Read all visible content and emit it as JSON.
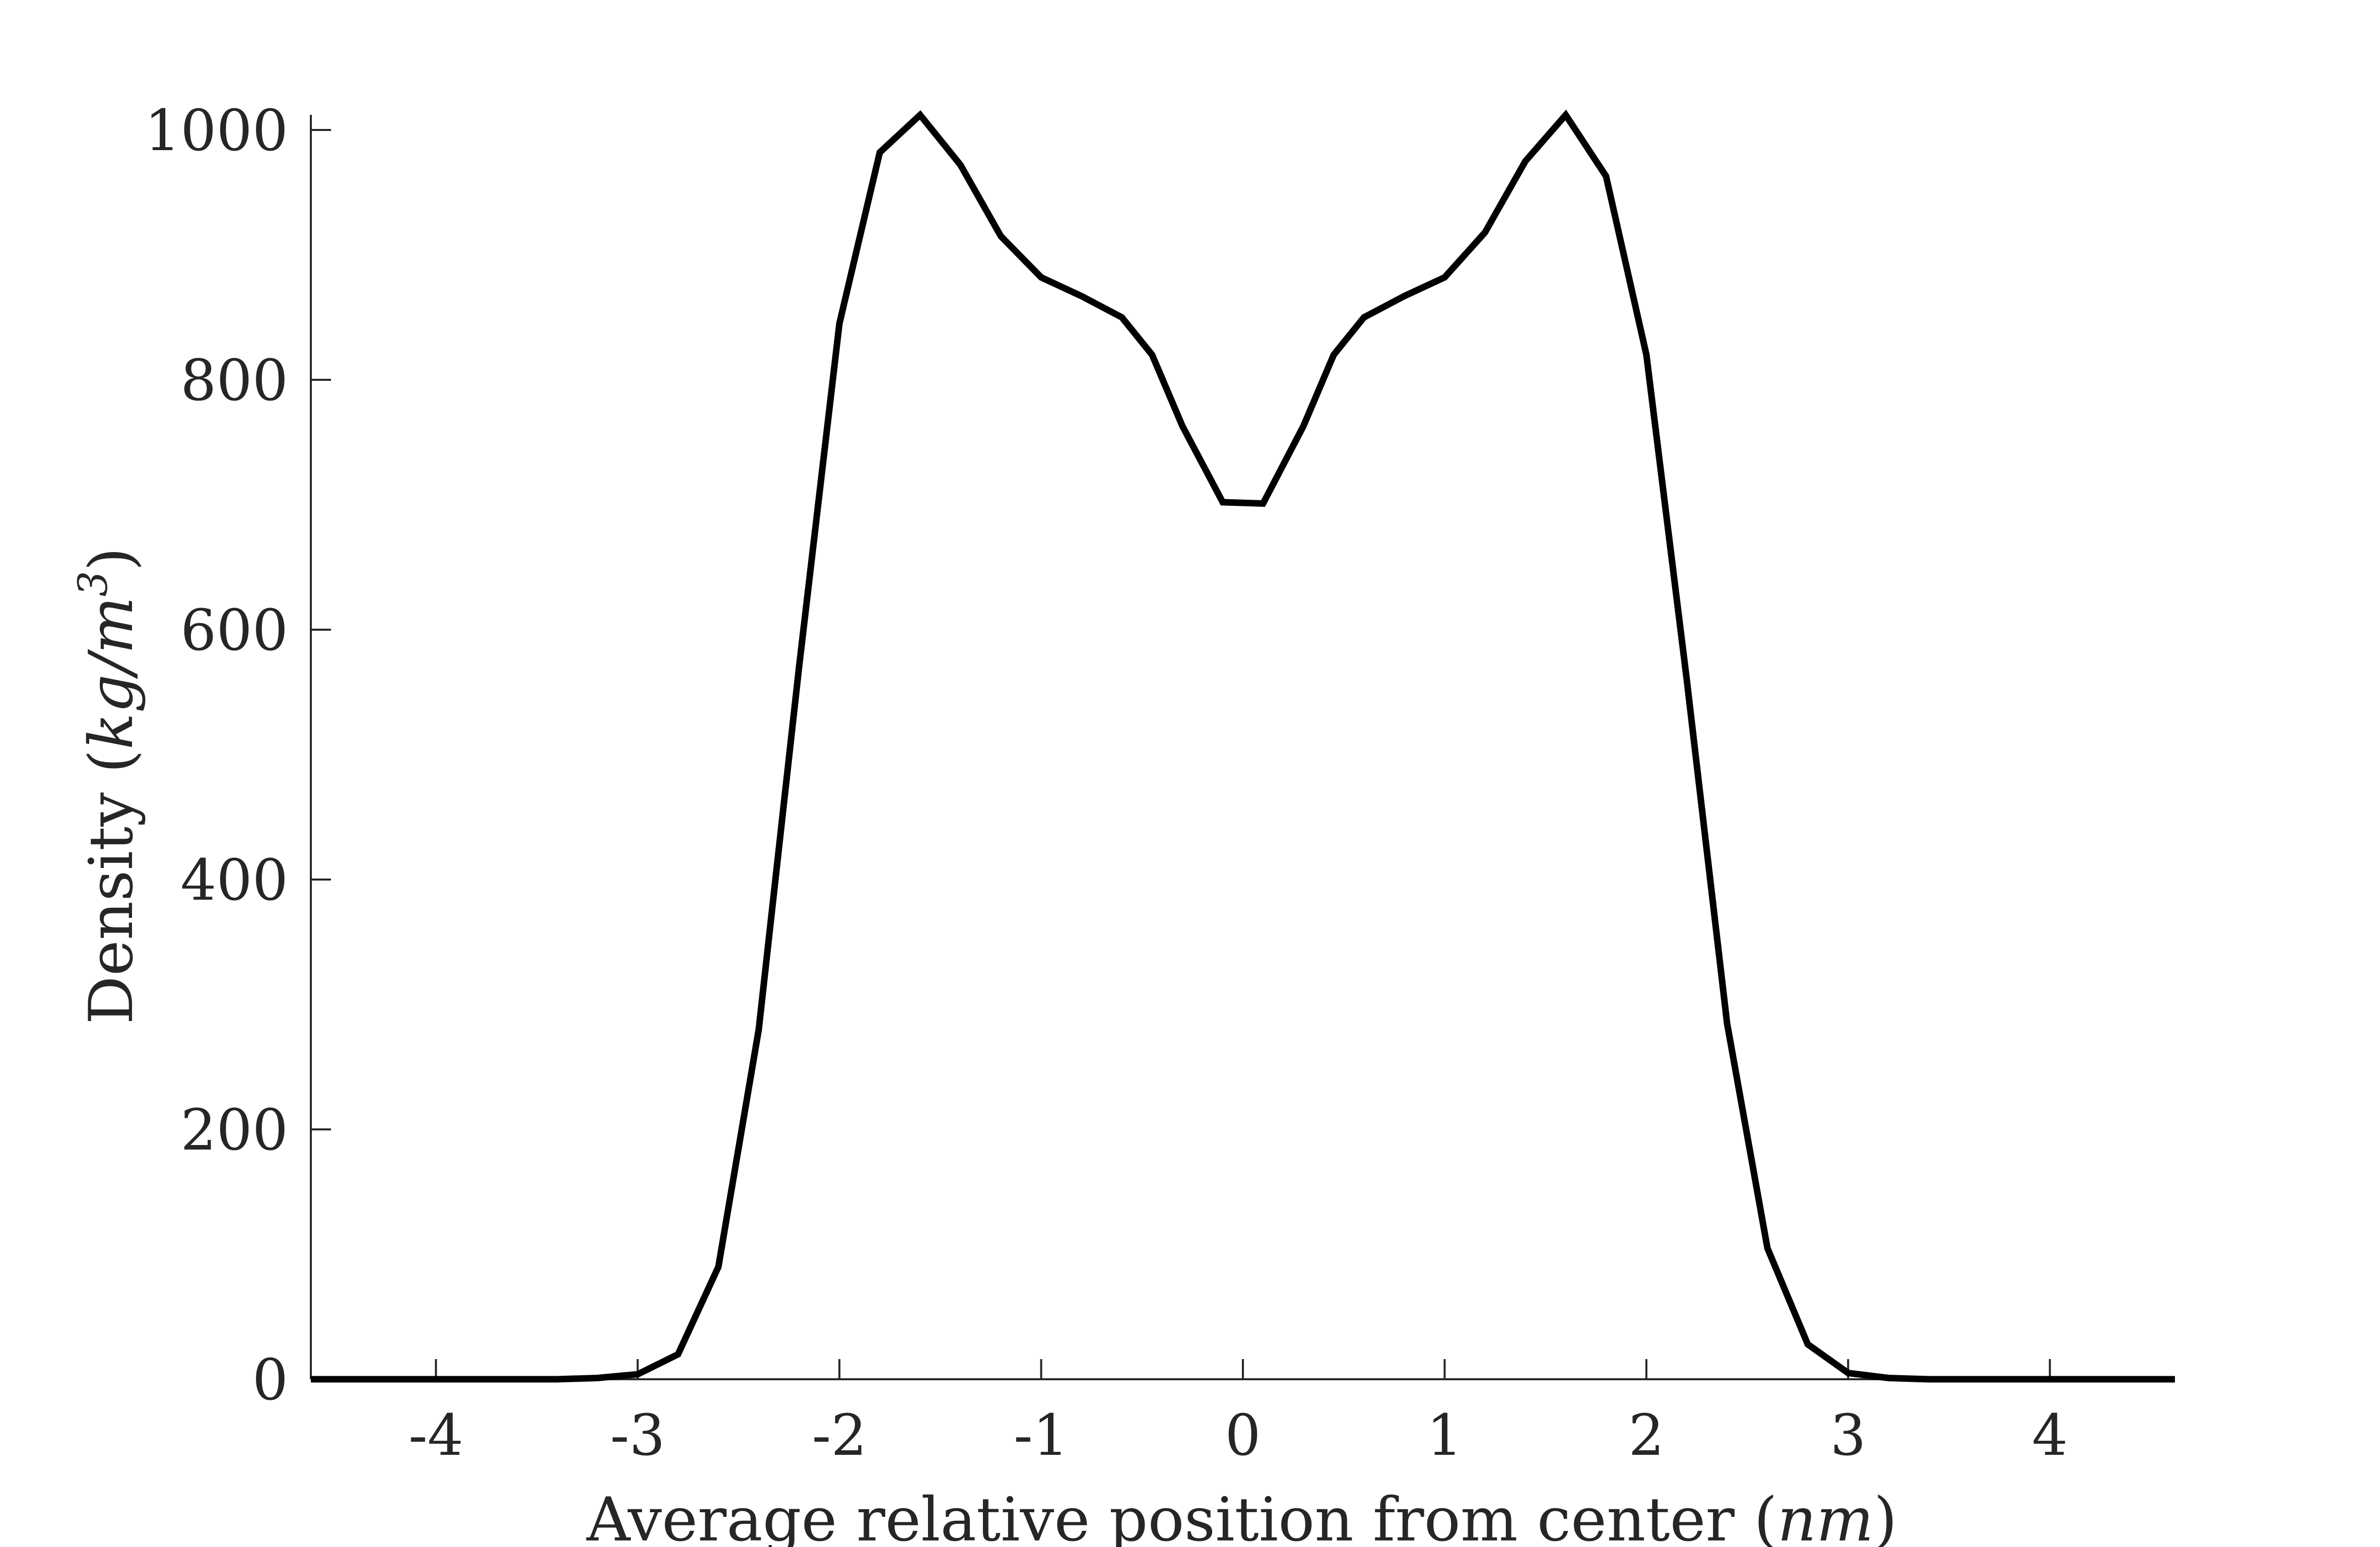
{
  "chart_data": {
    "type": "line",
    "title": "",
    "xlabel": "Average relative position from center",
    "xlabel_unit": "nm",
    "ylabel": "Density",
    "ylabel_unit": "kg/m",
    "ylabel_unit_power": "3",
    "xlim": [
      -4.62,
      4.62
    ],
    "ylim": [
      0,
      1000
    ],
    "xticks": [
      -4,
      -3,
      -2,
      -1,
      0,
      1,
      2,
      3,
      4
    ],
    "xtick_labels": [
      "-4",
      "-3",
      "-2",
      "-1",
      "0",
      "1",
      "2",
      "3",
      "4"
    ],
    "yticks": [
      0,
      200,
      400,
      600,
      800,
      1000
    ],
    "ytick_labels": [
      "0",
      "200",
      "400",
      "600",
      "800",
      "1000"
    ],
    "grid": false,
    "legend": "none",
    "line_color": "#000000",
    "series": [
      {
        "x": [
          -4.62,
          -4.4,
          -4.2,
          -4.0,
          -3.8,
          -3.6,
          -3.4,
          -3.2,
          -3.0,
          -2.8,
          -2.6,
          -2.4,
          -2.2,
          -2.0,
          -1.8,
          -1.6,
          -1.4,
          -1.2,
          -1.0,
          -0.8,
          -0.6,
          -0.45,
          -0.3,
          -0.1,
          0.1,
          0.3,
          0.45,
          0.6,
          0.8,
          1.0,
          1.2,
          1.4,
          1.6,
          1.8,
          2.0,
          2.2,
          2.4,
          2.6,
          2.8,
          3.0,
          3.2,
          3.4,
          3.6,
          3.8,
          4.0,
          4.2,
          4.4,
          4.62
        ],
        "y": [
          0,
          0,
          0,
          0,
          0,
          0,
          0,
          1,
          4,
          20,
          90,
          280,
          570,
          845,
          982,
          1012,
          972,
          915,
          882,
          867,
          850,
          820,
          763,
          702,
          701,
          763,
          820,
          850,
          867,
          882,
          918,
          975,
          1012,
          963,
          820,
          560,
          285,
          105,
          28,
          5,
          1,
          0,
          0,
          0,
          0,
          0,
          0,
          0
        ]
      }
    ]
  }
}
